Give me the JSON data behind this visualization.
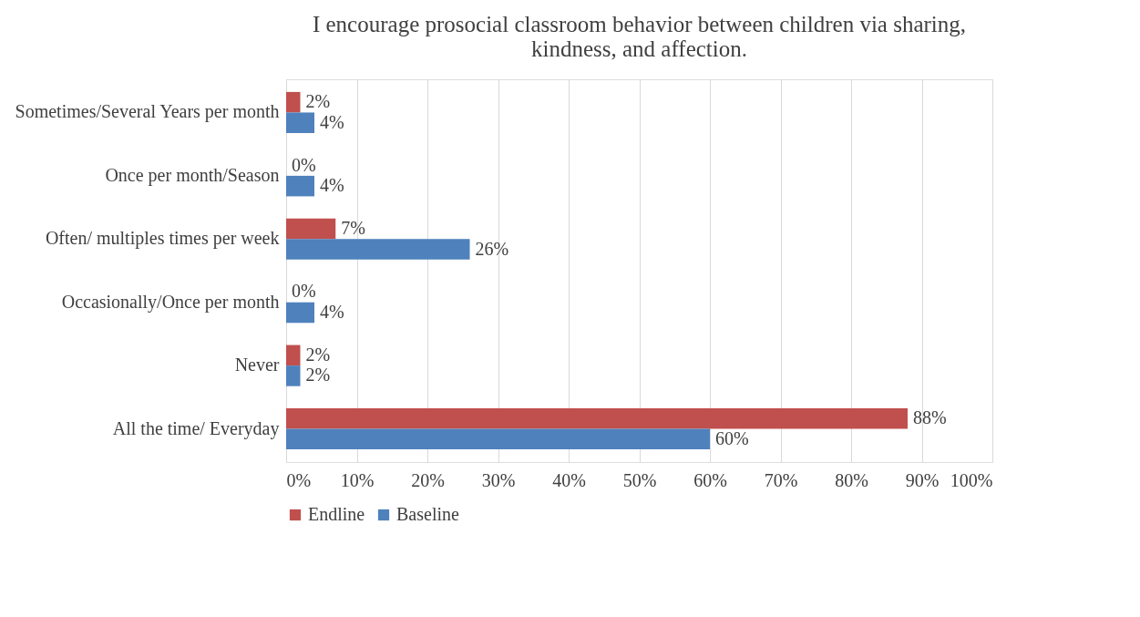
{
  "chart_data": {
    "type": "bar",
    "orientation": "horizontal",
    "title": "I encourage prosocial classroom behavior between children via sharing, kindness, and affection.",
    "categories": [
      "Sometimes/Several Years per month",
      "Once per month/Season",
      "Often/ multiples times per week",
      "Occasionally/Once per month",
      "Never",
      "All the time/ Everyday"
    ],
    "series": [
      {
        "name": "Endline",
        "color": "#c0504d",
        "values": [
          2,
          0,
          7,
          0,
          2,
          88
        ],
        "value_labels": [
          "2%",
          "0%",
          "7%",
          "0%",
          "2%",
          "88%"
        ]
      },
      {
        "name": "Baseline",
        "color": "#4f81bd",
        "values": [
          4,
          4,
          26,
          4,
          2,
          60
        ],
        "value_labels": [
          "4%",
          "4%",
          "26%",
          "4%",
          "2%",
          "60%"
        ]
      }
    ],
    "xlim": [
      0,
      100
    ],
    "xticks": [
      {
        "value": 0,
        "label": "0%"
      },
      {
        "value": 10,
        "label": "10%"
      },
      {
        "value": 20,
        "label": "20%"
      },
      {
        "value": 30,
        "label": "30%"
      },
      {
        "value": 40,
        "label": "40%"
      },
      {
        "value": 50,
        "label": "50%"
      },
      {
        "value": 60,
        "label": "60%"
      },
      {
        "value": 70,
        "label": "70%"
      },
      {
        "value": 80,
        "label": "80%"
      },
      {
        "value": 90,
        "label": "90%"
      },
      {
        "value": 100,
        "label": "100%"
      }
    ],
    "grid": "x",
    "legend": "bottom"
  }
}
